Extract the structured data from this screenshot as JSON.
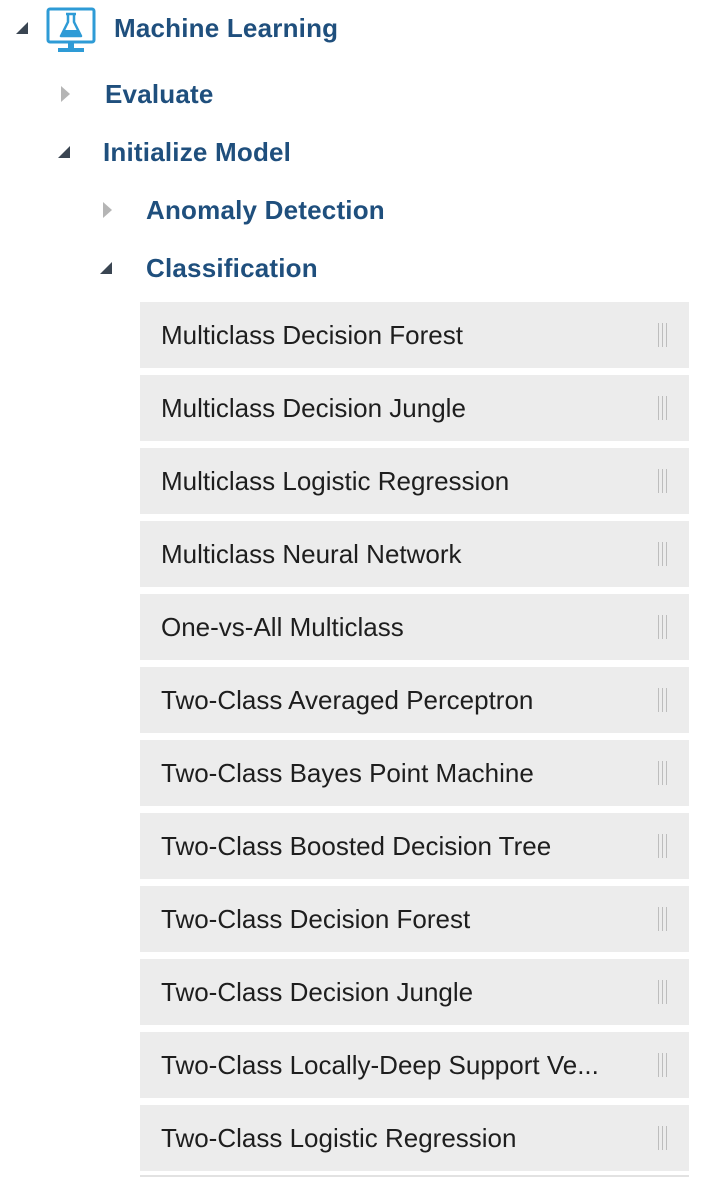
{
  "tree": {
    "root": {
      "label": "Machine Learning",
      "expanded": true,
      "icon": "flask-monitor-icon"
    },
    "evaluate": {
      "label": "Evaluate",
      "expanded": false
    },
    "initialize_model": {
      "label": "Initialize Model",
      "expanded": true
    },
    "anomaly_detection": {
      "label": "Anomaly Detection",
      "expanded": false
    },
    "classification": {
      "label": "Classification",
      "expanded": true
    }
  },
  "modules": [
    {
      "label": "Multiclass Decision Forest"
    },
    {
      "label": "Multiclass Decision Jungle"
    },
    {
      "label": "Multiclass Logistic Regression"
    },
    {
      "label": "Multiclass Neural Network"
    },
    {
      "label": "One-vs-All Multiclass"
    },
    {
      "label": "Two-Class Averaged Perceptron"
    },
    {
      "label": "Two-Class Bayes Point Machine"
    },
    {
      "label": "Two-Class Boosted Decision Tree"
    },
    {
      "label": "Two-Class Decision Forest"
    },
    {
      "label": "Two-Class Decision Jungle"
    },
    {
      "label": "Two-Class Locally-Deep Support Ve..."
    },
    {
      "label": "Two-Class Logistic Regression"
    }
  ],
  "colors": {
    "node_text": "#1f4f7d",
    "icon_accent": "#2e9bd6",
    "item_background": "#ececec",
    "item_text": "#1e1e1e"
  }
}
